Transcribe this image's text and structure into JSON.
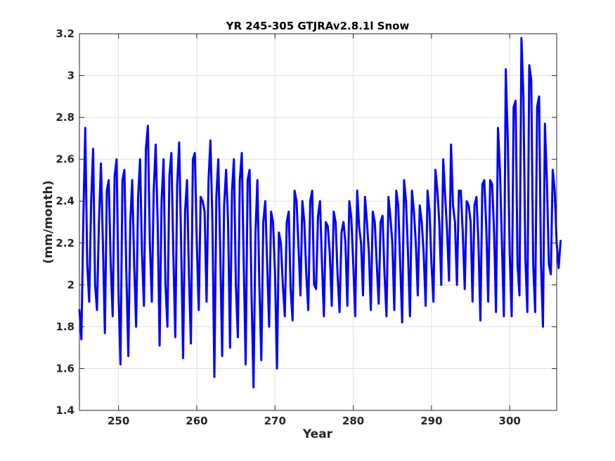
{
  "chart_data": {
    "type": "line",
    "title": "YR 245-305 GTJRAv2.8.1l Snow",
    "xlabel": "Year",
    "ylabel": "(mm/month)",
    "xlim": [
      245,
      306
    ],
    "ylim": [
      1.4,
      3.2
    ],
    "xticks": [
      250,
      260,
      270,
      280,
      290,
      300
    ],
    "xtick_labels": [
      "250",
      "260",
      "270",
      "280",
      "290",
      "300"
    ],
    "yticks": [
      1.4,
      1.6,
      1.8,
      2.0,
      2.2,
      2.4,
      2.6,
      2.8,
      3.0,
      3.2
    ],
    "ytick_labels": [
      "1.4",
      "1.6",
      "1.8",
      "2",
      "2.2",
      "2.4",
      "2.6",
      "2.8",
      "3",
      "3.2"
    ],
    "grid": true,
    "series": [
      {
        "color": "#0000ff",
        "x_start": 245.0,
        "x_step": 0.25,
        "values": [
          1.88,
          1.74,
          2.32,
          2.75,
          2.1,
          1.92,
          2.4,
          2.65,
          2.0,
          1.88,
          2.3,
          2.58,
          2.2,
          1.77,
          2.45,
          2.5,
          2.1,
          1.85,
          2.52,
          2.6,
          1.95,
          1.62,
          2.5,
          2.55,
          2.05,
          1.66,
          2.3,
          2.5,
          2.1,
          1.8,
          2.42,
          2.6,
          2.15,
          1.9,
          2.65,
          2.76,
          2.2,
          1.92,
          2.45,
          2.67,
          2.3,
          1.71,
          2.4,
          2.6,
          2.0,
          1.8,
          2.52,
          2.63,
          2.15,
          1.75,
          2.48,
          2.68,
          2.2,
          1.65,
          2.35,
          2.5,
          2.05,
          1.72,
          2.6,
          2.63,
          2.2,
          1.88,
          2.42,
          2.4,
          2.35,
          1.92,
          2.5,
          2.69,
          2.3,
          1.56,
          2.42,
          2.6,
          2.15,
          1.66,
          2.38,
          2.55,
          2.3,
          1.7,
          2.45,
          2.6,
          2.0,
          1.75,
          2.5,
          2.63,
          2.1,
          1.62,
          2.5,
          2.55,
          1.95,
          1.51,
          2.25,
          2.5,
          2.0,
          1.64,
          2.3,
          2.4,
          2.1,
          1.8,
          2.35,
          2.3,
          2.05,
          1.6,
          2.25,
          2.2,
          2.0,
          1.85,
          2.3,
          2.35,
          1.98,
          1.83,
          2.45,
          2.4,
          2.18,
          1.95,
          2.4,
          2.3,
          2.05,
          1.88,
          2.4,
          2.45,
          2.0,
          1.98,
          2.33,
          2.4,
          2.1,
          1.85,
          2.3,
          2.28,
          2.15,
          1.9,
          2.35,
          2.3,
          2.05,
          1.87,
          2.25,
          2.3,
          2.2,
          1.9,
          2.4,
          2.32,
          2.1,
          1.85,
          2.45,
          2.28,
          2.2,
          1.95,
          2.42,
          2.3,
          2.15,
          1.88,
          2.35,
          2.3,
          2.1,
          1.91,
          2.3,
          2.33,
          2.05,
          1.85,
          2.42,
          2.32,
          2.2,
          1.88,
          2.45,
          2.38,
          2.1,
          1.82,
          2.5,
          2.4,
          2.15,
          1.85,
          2.45,
          2.35,
          2.2,
          1.95,
          2.38,
          2.3,
          2.15,
          1.9,
          2.45,
          2.35,
          2.1,
          1.92,
          2.55,
          2.45,
          2.3,
          2.0,
          2.6,
          2.42,
          2.25,
          2.02,
          2.67,
          2.38,
          2.3,
          2.0,
          2.45,
          2.45,
          2.25,
          1.98,
          2.4,
          2.38,
          2.3,
          1.92,
          2.38,
          2.42,
          2.2,
          1.83,
          2.48,
          2.5,
          2.28,
          1.92,
          2.5,
          2.48,
          2.25,
          1.87,
          2.75,
          2.55,
          2.2,
          1.85,
          3.03,
          2.7,
          2.15,
          1.85,
          2.85,
          2.88,
          2.1,
          1.95,
          3.18,
          2.9,
          2.12,
          1.87,
          3.05,
          2.98,
          2.1,
          1.87,
          2.85,
          2.9,
          2.1,
          1.8,
          2.77,
          2.5,
          2.1,
          2.05,
          2.55,
          2.45,
          2.2,
          2.08,
          2.21
        ]
      }
    ]
  }
}
